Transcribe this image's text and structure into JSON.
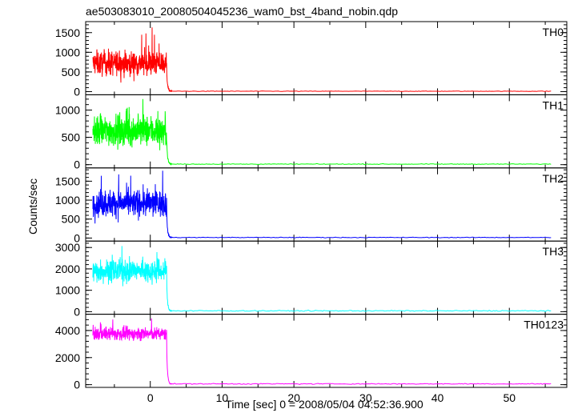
{
  "chart_data": {
    "type": "line",
    "title": "ae503083010_20080504045236_wam0_bst_4band_nobin.qdp",
    "xlabel": "Time [sec] 0 = 2008/05/04 04:52:36.900",
    "ylabel": "Counts/sec",
    "xlim": [
      -9,
      58
    ],
    "x_ticks": [
      0,
      10,
      20,
      30,
      40,
      50
    ],
    "x_tick_labels": [
      "0",
      "10",
      "20",
      "30",
      "40",
      "50"
    ],
    "grid": false,
    "burst": {
      "start": -8,
      "end": 2.3,
      "decay_end": 3.0,
      "stop": 56
    },
    "panels": [
      {
        "name": "TH0",
        "color": "#ff0000",
        "ylim": [
          -80,
          1780
        ],
        "yticks": [
          0,
          500,
          1000,
          1500
        ],
        "ytick_labels": [
          "0",
          "500",
          "1000",
          "1500"
        ],
        "burst_mean": 720,
        "burst_spread": 280,
        "burst_peak": 1720,
        "baseline": 10
      },
      {
        "name": "TH1",
        "color": "#00ff00",
        "ylim": [
          -60,
          1280
        ],
        "yticks": [
          0,
          500,
          1000
        ],
        "ytick_labels": [
          "0",
          "500",
          "1000"
        ],
        "burst_mean": 620,
        "burst_spread": 250,
        "burst_peak": 1230,
        "baseline": 10
      },
      {
        "name": "TH2",
        "color": "#0000ff",
        "ylim": [
          -80,
          1850
        ],
        "yticks": [
          0,
          500,
          1000,
          1500
        ],
        "ytick_labels": [
          "0",
          "500",
          "1000",
          "1500"
        ],
        "burst_mean": 920,
        "burst_spread": 320,
        "burst_peak": 1800,
        "baseline": 15
      },
      {
        "name": "TH3",
        "color": "#00ffff",
        "ylim": [
          -120,
          3300
        ],
        "yticks": [
          0,
          1000,
          2000,
          3000
        ],
        "ytick_labels": [
          "0",
          "1000",
          "2000",
          "3000"
        ],
        "burst_mean": 1900,
        "burst_spread": 480,
        "burst_peak": 3150,
        "baseline": 40
      },
      {
        "name": "TH0123",
        "color": "#ff00ff",
        "ylim": [
          -200,
          5200
        ],
        "yticks": [
          0,
          2000,
          4000
        ],
        "ytick_labels": [
          "0",
          "2000",
          "4000"
        ],
        "burst_mean": 3750,
        "burst_spread": 420,
        "burst_peak": 4900,
        "baseline": 60
      }
    ]
  }
}
